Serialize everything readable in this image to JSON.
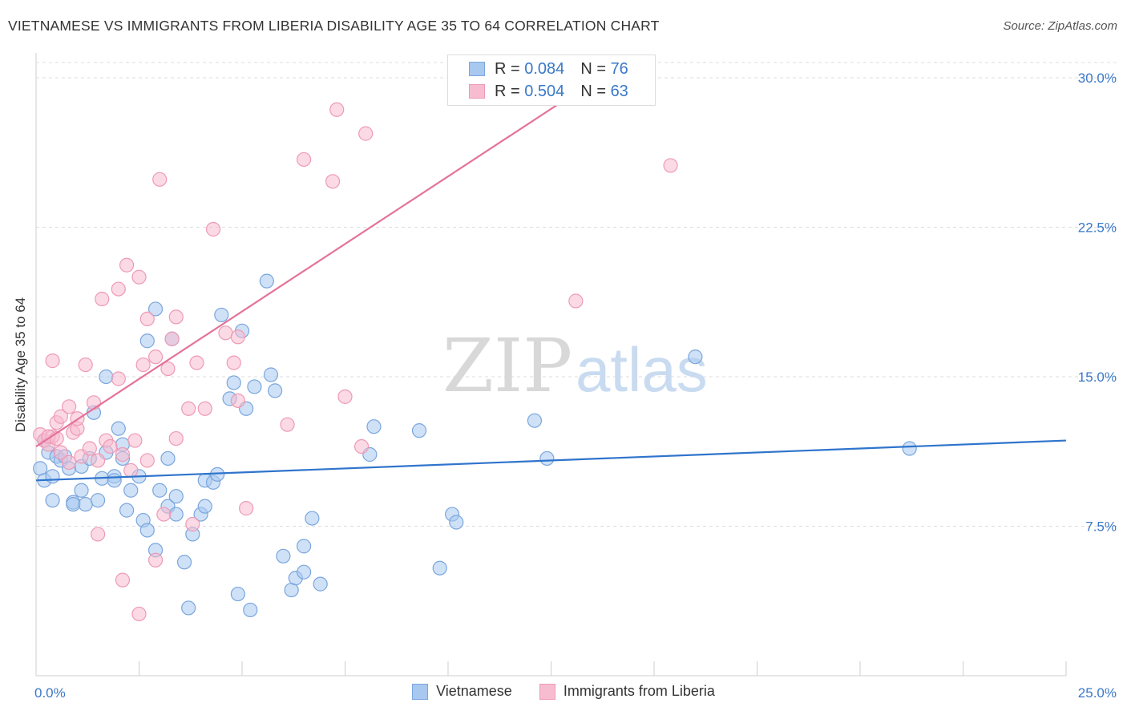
{
  "header": {
    "title": "VIETNAMESE VS IMMIGRANTS FROM LIBERIA DISABILITY AGE 35 TO 64 CORRELATION CHART",
    "source": "Source: ZipAtlas.com"
  },
  "watermark": {
    "zip": "ZIP",
    "atlas": "atlas"
  },
  "legend": {
    "rows": [
      {
        "r_label": "R = ",
        "r_value": "0.084",
        "n_label": "N = ",
        "n_value": "76"
      },
      {
        "r_label": "R = ",
        "r_value": "0.504",
        "n_label": "N = ",
        "n_value": "63"
      }
    ]
  },
  "colors": {
    "blue_fill": "#a8c8f0",
    "blue_stroke": "#7aa6dd",
    "blue_line": "#2f74cc",
    "pink_fill": "#f7bcd0",
    "pink_stroke": "#ee9ab5",
    "pink_line": "#e4729a",
    "grid": "#dddddd",
    "axis_text": "#3a78c8"
  },
  "chart_data": {
    "type": "scatter",
    "title": "VIETNAMESE VS IMMIGRANTS FROM LIBERIA DISABILITY AGE 35 TO 64 CORRELATION CHART",
    "xlabel": "",
    "ylabel": "Disability Age 35 to 64",
    "xlim": [
      0,
      25
    ],
    "ylim": [
      0,
      30
    ],
    "x_ticks": [
      "0.0%",
      "25.0%"
    ],
    "y_ticks": [
      {
        "value": 7.5,
        "label": "7.5%"
      },
      {
        "value": 15.0,
        "label": "15.0%"
      },
      {
        "value": 22.5,
        "label": "22.5%"
      },
      {
        "value": 30.0,
        "label": "30.0%"
      }
    ],
    "grid": true,
    "legend_position": "bottom",
    "series": [
      {
        "name": "Vietnamese",
        "color": "#7aa6dd",
        "trend": {
          "x": [
            0,
            25
          ],
          "y": [
            9.8,
            11.8
          ]
        },
        "points": [
          [
            0.1,
            10.4
          ],
          [
            0.2,
            11.8
          ],
          [
            0.3,
            11.2
          ],
          [
            0.2,
            9.8
          ],
          [
            0.4,
            10.0
          ],
          [
            0.4,
            8.8
          ],
          [
            0.5,
            11.0
          ],
          [
            0.6,
            10.8
          ],
          [
            0.7,
            11.0
          ],
          [
            0.8,
            10.4
          ],
          [
            0.9,
            8.7
          ],
          [
            0.9,
            8.6
          ],
          [
            1.1,
            10.5
          ],
          [
            1.1,
            9.3
          ],
          [
            1.2,
            8.6
          ],
          [
            1.3,
            10.9
          ],
          [
            1.4,
            13.2
          ],
          [
            1.5,
            8.8
          ],
          [
            1.6,
            9.9
          ],
          [
            1.7,
            11.2
          ],
          [
            1.7,
            15.0
          ],
          [
            1.9,
            10.0
          ],
          [
            1.9,
            9.8
          ],
          [
            2.0,
            12.4
          ],
          [
            2.1,
            10.9
          ],
          [
            2.1,
            11.6
          ],
          [
            2.2,
            8.3
          ],
          [
            2.3,
            9.3
          ],
          [
            2.5,
            10.0
          ],
          [
            2.6,
            7.8
          ],
          [
            2.7,
            7.3
          ],
          [
            2.7,
            16.8
          ],
          [
            2.9,
            18.4
          ],
          [
            2.9,
            6.3
          ],
          [
            3.0,
            9.3
          ],
          [
            3.2,
            8.5
          ],
          [
            3.2,
            10.9
          ],
          [
            3.3,
            16.9
          ],
          [
            3.4,
            9.0
          ],
          [
            3.4,
            8.1
          ],
          [
            3.6,
            5.7
          ],
          [
            3.7,
            3.4
          ],
          [
            3.8,
            7.1
          ],
          [
            4.0,
            8.1
          ],
          [
            4.1,
            8.5
          ],
          [
            4.1,
            9.8
          ],
          [
            4.3,
            9.7
          ],
          [
            4.4,
            10.1
          ],
          [
            4.5,
            18.1
          ],
          [
            4.7,
            13.9
          ],
          [
            4.8,
            14.7
          ],
          [
            4.9,
            4.1
          ],
          [
            5.0,
            17.3
          ],
          [
            5.1,
            13.4
          ],
          [
            5.2,
            3.3
          ],
          [
            5.3,
            14.5
          ],
          [
            5.6,
            19.8
          ],
          [
            5.7,
            15.1
          ],
          [
            5.8,
            14.3
          ],
          [
            6.0,
            6.0
          ],
          [
            6.2,
            4.3
          ],
          [
            6.3,
            4.9
          ],
          [
            6.5,
            5.2
          ],
          [
            6.5,
            6.5
          ],
          [
            6.7,
            7.9
          ],
          [
            6.9,
            4.6
          ],
          [
            8.1,
            11.1
          ],
          [
            8.2,
            12.5
          ],
          [
            9.3,
            12.3
          ],
          [
            9.8,
            5.4
          ],
          [
            10.1,
            8.1
          ],
          [
            10.2,
            7.7
          ],
          [
            12.1,
            12.8
          ],
          [
            12.4,
            10.9
          ],
          [
            16.0,
            16.0
          ],
          [
            21.2,
            11.4
          ]
        ]
      },
      {
        "name": "Immigrants from Liberia",
        "color": "#ee9ab5",
        "trend": {
          "x": [
            0,
            20
          ],
          "y": [
            11.5,
            38.6
          ]
        },
        "points": [
          [
            0.1,
            12.1
          ],
          [
            0.2,
            11.8
          ],
          [
            0.3,
            11.6
          ],
          [
            0.4,
            12.0
          ],
          [
            0.4,
            15.8
          ],
          [
            0.5,
            12.7
          ],
          [
            0.6,
            13.0
          ],
          [
            0.6,
            11.2
          ],
          [
            0.8,
            10.7
          ],
          [
            0.8,
            13.5
          ],
          [
            0.9,
            12.2
          ],
          [
            1.0,
            12.4
          ],
          [
            1.0,
            12.9
          ],
          [
            1.1,
            11.0
          ],
          [
            1.2,
            15.6
          ],
          [
            1.3,
            11.4
          ],
          [
            1.4,
            13.7
          ],
          [
            1.5,
            10.8
          ],
          [
            1.5,
            7.1
          ],
          [
            1.6,
            18.9
          ],
          [
            1.7,
            11.8
          ],
          [
            1.8,
            11.5
          ],
          [
            2.0,
            14.9
          ],
          [
            2.0,
            19.4
          ],
          [
            2.1,
            11.1
          ],
          [
            2.1,
            4.8
          ],
          [
            2.2,
            20.6
          ],
          [
            2.3,
            10.3
          ],
          [
            2.4,
            11.8
          ],
          [
            2.5,
            20.0
          ],
          [
            2.5,
            3.1
          ],
          [
            2.6,
            15.6
          ],
          [
            2.7,
            17.9
          ],
          [
            2.7,
            10.8
          ],
          [
            2.9,
            5.8
          ],
          [
            2.9,
            16.0
          ],
          [
            3.0,
            24.9
          ],
          [
            3.1,
            8.1
          ],
          [
            3.2,
            15.4
          ],
          [
            3.3,
            16.9
          ],
          [
            3.4,
            18.0
          ],
          [
            3.4,
            11.9
          ],
          [
            3.7,
            13.4
          ],
          [
            3.8,
            7.6
          ],
          [
            3.9,
            15.7
          ],
          [
            4.1,
            13.4
          ],
          [
            4.3,
            22.4
          ],
          [
            4.6,
            17.2
          ],
          [
            4.8,
            15.7
          ],
          [
            4.9,
            13.8
          ],
          [
            4.9,
            17.0
          ],
          [
            5.1,
            8.4
          ],
          [
            6.1,
            12.6
          ],
          [
            6.5,
            25.9
          ],
          [
            7.2,
            24.8
          ],
          [
            7.3,
            28.4
          ],
          [
            7.5,
            14.0
          ],
          [
            7.9,
            11.5
          ],
          [
            8.0,
            27.2
          ],
          [
            13.1,
            18.8
          ],
          [
            15.4,
            25.6
          ],
          [
            0.3,
            12.0
          ],
          [
            0.5,
            11.9
          ]
        ]
      }
    ]
  },
  "bottom_legend": [
    "Vietnamese",
    "Immigrants from Liberia"
  ]
}
